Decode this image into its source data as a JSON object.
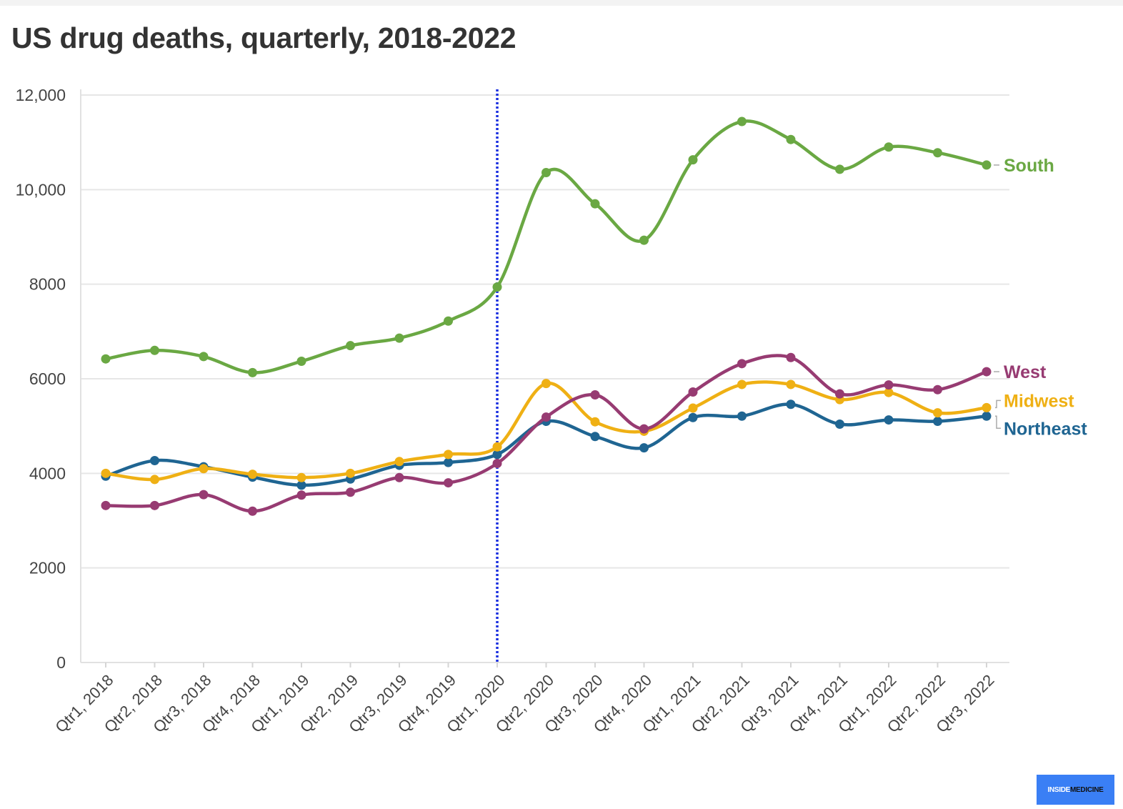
{
  "header": {
    "title": "US drug deaths, quarterly, 2018-2022"
  },
  "brand": {
    "part1": "INSIDE",
    "part2": "MEDICINE",
    "background": "#3a7ff5"
  },
  "chart_data": {
    "type": "line",
    "title": "US drug deaths, quarterly, 2018-2022",
    "xlabel": "",
    "ylabel": "",
    "categories": [
      "Qtr1, 2018",
      "Qtr2, 2018",
      "Qtr3, 2018",
      "Qtr4, 2018",
      "Qtr1, 2019",
      "Qtr2, 2019",
      "Qtr3, 2019",
      "Qtr4, 2019",
      "Qtr1, 2020",
      "Qtr2, 2020",
      "Qtr3, 2020",
      "Qtr4, 2020",
      "Qtr1, 2021",
      "Qtr2, 2021",
      "Qtr3, 2021",
      "Qtr4, 2021",
      "Qtr1, 2022",
      "Qtr2, 2022",
      "Qtr3, 2022"
    ],
    "ylim": [
      0,
      12000
    ],
    "y_ticks": [
      0,
      2000,
      4000,
      6000,
      8000,
      10000,
      12000
    ],
    "y_tick_labels": [
      "0",
      "2000",
      "4000",
      "6000",
      "8000",
      "10,000",
      "12,000"
    ],
    "grid": true,
    "legend": "direct labels at right end of lines",
    "reference_line": {
      "category": "Qtr1, 2020",
      "style": "dotted",
      "color": "#1a2fe0"
    },
    "series": [
      {
        "name": "South",
        "color": "#6aa843",
        "values": [
          6420,
          6600,
          6470,
          6130,
          6370,
          6700,
          6860,
          7220,
          7940,
          10360,
          9700,
          8930,
          10630,
          11440,
          11060,
          10430,
          10900,
          10780,
          10520
        ]
      },
      {
        "name": "West",
        "color": "#973b72",
        "values": [
          3320,
          3320,
          3550,
          3200,
          3540,
          3600,
          3910,
          3800,
          4210,
          5190,
          5660,
          4940,
          5720,
          6320,
          6450,
          5680,
          5870,
          5770,
          6150
        ]
      },
      {
        "name": "Midwest",
        "color": "#efb014",
        "values": [
          4000,
          3870,
          4100,
          3980,
          3910,
          4000,
          4250,
          4400,
          4560,
          5900,
          5090,
          4890,
          5380,
          5880,
          5880,
          5560,
          5710,
          5280,
          5390
        ]
      },
      {
        "name": "Northeast",
        "color": "#1f6592",
        "values": [
          3940,
          4270,
          4140,
          3920,
          3750,
          3880,
          4170,
          4230,
          4400,
          5100,
          4780,
          4540,
          5180,
          5210,
          5460,
          5040,
          5130,
          5100,
          5210
        ]
      }
    ]
  }
}
